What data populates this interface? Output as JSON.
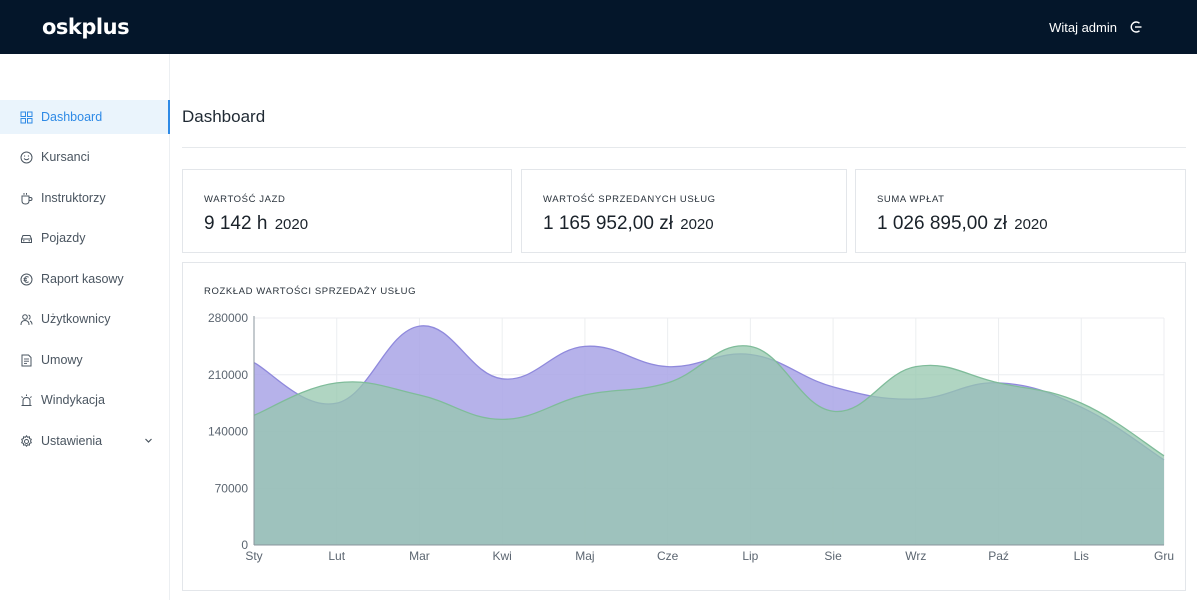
{
  "app": {
    "logo": "oskplus",
    "greeting": "Witaj admin"
  },
  "sidebar": {
    "items": [
      {
        "label": "Dashboard",
        "icon": "grid-icon"
      },
      {
        "label": "Kursanci",
        "icon": "smile-icon"
      },
      {
        "label": "Instruktorzy",
        "icon": "coffee-icon"
      },
      {
        "label": "Pojazdy",
        "icon": "car-icon"
      },
      {
        "label": "Raport kasowy",
        "icon": "euro-icon"
      },
      {
        "label": "Użytkownicy",
        "icon": "users-icon"
      },
      {
        "label": "Umowy",
        "icon": "document-icon"
      },
      {
        "label": "Windykacja",
        "icon": "alarm-icon"
      },
      {
        "label": "Ustawienia",
        "icon": "gear-icon"
      }
    ]
  },
  "main": {
    "title": "Dashboard",
    "cards": [
      {
        "label": "WARTOŚĆ JAZD",
        "value": "9 142 h",
        "year": "2020"
      },
      {
        "label": "WARTOŚĆ SPRZEDANYCH USŁUG",
        "value": "1 165 952,00 zł",
        "year": "2020"
      },
      {
        "label": "SUMA WPŁAT",
        "value": "1 026 895,00 zł",
        "year": "2020"
      }
    ]
  },
  "colors": {
    "accent": "#2e8ae6",
    "topbar": "#04162a",
    "series_purple": "#a9a4e6",
    "series_green": "#95c7ae",
    "overlap": "#93bcb1"
  },
  "chart_data": {
    "type": "area",
    "title": "ROZKŁAD WARTOŚCI SPRZEDAŻY USŁUG",
    "categories": [
      "Sty",
      "Lut",
      "Mar",
      "Kwi",
      "Maj",
      "Cze",
      "Lip",
      "Sie",
      "Wrz",
      "Paź",
      "Lis",
      "Gru"
    ],
    "yticks": [
      "0",
      "70000",
      "140000",
      "210000",
      "280000"
    ],
    "ylim": [
      0,
      280000
    ],
    "grid": true,
    "series": [
      {
        "values": [
          225000,
          175000,
          270000,
          205000,
          245000,
          220000,
          235000,
          195000,
          180000,
          200000,
          170000,
          105000
        ]
      },
      {
        "values": [
          160000,
          200000,
          185000,
          155000,
          185000,
          200000,
          245000,
          165000,
          220000,
          200000,
          175000,
          110000
        ]
      }
    ]
  }
}
